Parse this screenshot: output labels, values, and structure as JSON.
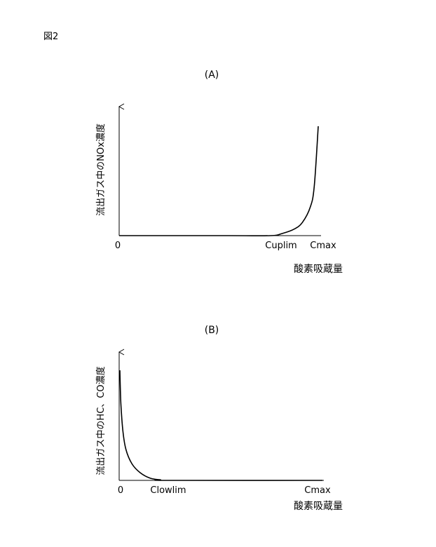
{
  "figure_label": "図2",
  "chart_data": [
    {
      "type": "line",
      "title": "(A)",
      "xlabel": "酸素吸蔵量",
      "ylabel": "流出ガス中のNOx濃度",
      "x_ticks": [
        "0",
        "Cuplim",
        "Cmax"
      ],
      "curve": "concentration near zero from 0 up to Cuplim, then rising steeply as oxygen storage approaches Cmax",
      "series": [
        {
          "x": [
            0,
            0.55,
            0.76,
            0.82,
            0.88,
            0.92,
            0.96,
            0.98,
            1.0
          ],
          "y": [
            0,
            0,
            0,
            0.02,
            0.06,
            0.12,
            0.26,
            0.45,
            1.0
          ]
        }
      ],
      "grid": false
    },
    {
      "type": "line",
      "title": "(B)",
      "xlabel": "酸素吸蔵量",
      "ylabel": "流出ガス中のHC、CO濃度",
      "x_ticks": [
        "0",
        "Clowlim",
        "Cmax"
      ],
      "curve": "concentration high at 0, falling steeply to near zero by Clowlim, then flat to Cmax",
      "series": [
        {
          "x": [
            0,
            0.005,
            0.015,
            0.03,
            0.06,
            0.1,
            0.15,
            0.2,
            0.24,
            1.0
          ],
          "y": [
            1.0,
            0.7,
            0.45,
            0.28,
            0.15,
            0.07,
            0.02,
            0.005,
            0,
            0
          ]
        }
      ],
      "grid": false
    }
  ]
}
